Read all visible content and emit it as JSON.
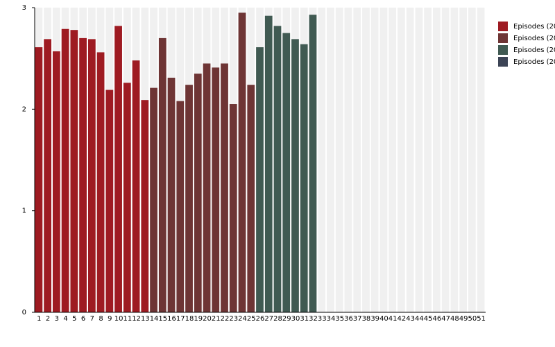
{
  "chart_data": {
    "type": "bar",
    "categories": [
      "1",
      "2",
      "3",
      "4",
      "5",
      "6",
      "7",
      "8",
      "9",
      "10",
      "11",
      "12",
      "13",
      "14",
      "15",
      "16",
      "17",
      "18",
      "19",
      "20",
      "21",
      "22",
      "23",
      "24",
      "25",
      "26",
      "27",
      "28",
      "29",
      "30",
      "31",
      "32",
      "33",
      "34",
      "35",
      "36",
      "37",
      "38",
      "39",
      "40",
      "41",
      "42",
      "43",
      "44",
      "45",
      "46",
      "47",
      "48",
      "49",
      "50",
      "51"
    ],
    "series": [
      {
        "name": "Episodes (20",
        "color": "#9e1b22",
        "values": [
          2.61,
          2.69,
          2.57,
          2.79,
          2.78,
          2.7,
          2.69,
          2.56,
          2.19,
          2.82,
          2.26,
          2.48,
          2.09,
          null,
          null,
          null,
          null,
          null,
          null,
          null,
          null,
          null,
          null,
          null,
          null,
          null,
          null,
          null,
          null,
          null,
          null,
          null,
          null,
          null,
          null,
          null,
          null,
          null,
          null,
          null,
          null,
          null,
          null,
          null,
          null,
          null,
          null,
          null,
          null,
          null,
          null
        ]
      },
      {
        "name": "Episodes (20",
        "color": "#6e3535",
        "values": [
          null,
          null,
          null,
          null,
          null,
          null,
          null,
          null,
          null,
          null,
          null,
          null,
          null,
          2.21,
          2.7,
          2.31,
          2.08,
          2.24,
          2.35,
          2.45,
          2.41,
          2.45,
          2.05,
          2.95,
          2.24,
          null,
          null,
          null,
          null,
          null,
          null,
          null,
          null,
          null,
          null,
          null,
          null,
          null,
          null,
          null,
          null,
          null,
          null,
          null,
          null,
          null,
          null,
          null,
          null,
          null,
          null
        ]
      },
      {
        "name": "Episodes (20",
        "color": "#405a52",
        "values": [
          null,
          null,
          null,
          null,
          null,
          null,
          null,
          null,
          null,
          null,
          null,
          null,
          null,
          null,
          null,
          null,
          null,
          null,
          null,
          null,
          null,
          null,
          null,
          null,
          null,
          2.61,
          2.92,
          2.82,
          2.75,
          2.69,
          2.64,
          2.93,
          null,
          null,
          null,
          null,
          null,
          null,
          null,
          null,
          null,
          null,
          null,
          null,
          null,
          null,
          null,
          null,
          null,
          null,
          null
        ]
      },
      {
        "name": "Episodes (20",
        "color": "#3c4455",
        "values": [
          null,
          null,
          null,
          null,
          null,
          null,
          null,
          null,
          null,
          null,
          null,
          null,
          null,
          null,
          null,
          null,
          null,
          null,
          null,
          null,
          null,
          null,
          null,
          null,
          null,
          null,
          null,
          null,
          null,
          null,
          null,
          null,
          null,
          null,
          null,
          null,
          null,
          null,
          null,
          null,
          null,
          null,
          null,
          null,
          null,
          null,
          null,
          null,
          null,
          null,
          null
        ]
      }
    ],
    "ylim": [
      0,
      3
    ],
    "yticks": [
      0,
      1,
      2,
      3
    ],
    "legend": "right"
  }
}
